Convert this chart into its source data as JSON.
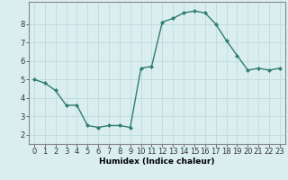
{
  "x": [
    0,
    1,
    2,
    3,
    4,
    5,
    6,
    7,
    8,
    9,
    10,
    11,
    12,
    13,
    14,
    15,
    16,
    17,
    18,
    19,
    20,
    21,
    22,
    23
  ],
  "y": [
    5.0,
    4.8,
    4.4,
    3.6,
    3.6,
    2.5,
    2.4,
    2.5,
    2.5,
    2.4,
    5.6,
    5.7,
    8.1,
    8.3,
    8.6,
    8.7,
    8.6,
    8.0,
    7.1,
    6.3,
    5.5,
    5.6,
    5.5,
    5.6
  ],
  "line_color": "#2e7d6e",
  "marker": "D",
  "marker_size": 2.0,
  "bg_color": "#daeef0",
  "grid_color": "#c0dede",
  "xlabel": "Humidex (Indice chaleur)",
  "xlim": [
    -0.5,
    23.5
  ],
  "ylim": [
    1.5,
    9.2
  ],
  "yticks": [
    2,
    3,
    4,
    5,
    6,
    7,
    8
  ],
  "xticks": [
    0,
    1,
    2,
    3,
    4,
    5,
    6,
    7,
    8,
    9,
    10,
    11,
    12,
    13,
    14,
    15,
    16,
    17,
    18,
    19,
    20,
    21,
    22,
    23
  ],
  "xtick_labels": [
    "0",
    "1",
    "2",
    "3",
    "4",
    "5",
    "6",
    "7",
    "8",
    "9",
    "10",
    "11",
    "12",
    "13",
    "14",
    "15",
    "16",
    "17",
    "18",
    "19",
    "20",
    "21",
    "22",
    "23"
  ],
  "line_width": 1.0,
  "tick_fontsize": 6.0,
  "xlabel_fontsize": 6.5,
  "spine_color": "#888888"
}
